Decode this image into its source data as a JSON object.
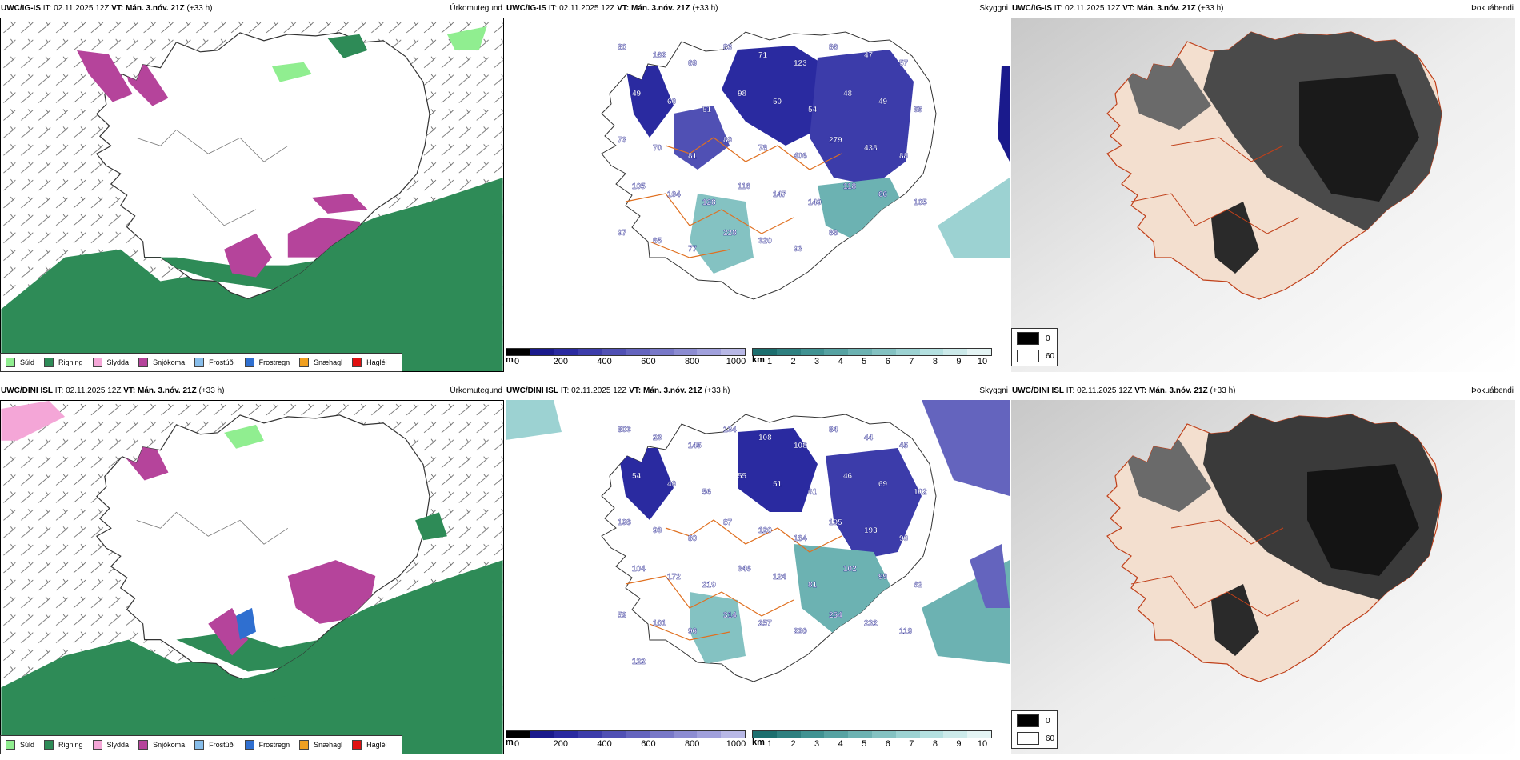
{
  "rows": [
    {
      "model": "UWC/IG-IS",
      "it": "IT: 02.11.2025 12Z",
      "vt_label": "VT:",
      "vt": "Mán. 3.nóv. 21Z",
      "lead": "(+33 h)",
      "titles": [
        "Úrkomutegund",
        "Skyggni",
        "Þokuábendi"
      ]
    },
    {
      "model": "UWC/DINI ISL",
      "it": "IT: 02.11.2025 12Z",
      "vt_label": "VT:",
      "vt": "Mán. 3.nóv. 21Z",
      "lead": "(+33 h)",
      "titles": [
        "Úrkomutegund",
        "Skyggni",
        "Þokuábendi"
      ]
    }
  ],
  "precip_legend": [
    {
      "label": "Súld",
      "color": "#90ee90"
    },
    {
      "label": "Rigning",
      "color": "#2e8b57"
    },
    {
      "label": "Slydda",
      "color": "#f4a6d7"
    },
    {
      "label": "Snjókoma",
      "color": "#b5449b"
    },
    {
      "label": "Frostúði",
      "color": "#87bdea"
    },
    {
      "label": "Frostregn",
      "color": "#2f6fd0"
    },
    {
      "label": "Snæhagl",
      "color": "#f0a020"
    },
    {
      "label": "Haglél",
      "color": "#e01010"
    }
  ],
  "visibility_m": {
    "unit": "m",
    "ticks": [
      "0",
      "200",
      "400",
      "600",
      "800",
      "1000"
    ],
    "colors": [
      "#000000",
      "#1a1a8c",
      "#2a2aa0",
      "#3c3caa",
      "#5050b4",
      "#6464be",
      "#7878c8",
      "#8c8cd2",
      "#a0a0dc",
      "#b8b8e6"
    ]
  },
  "visibility_km": {
    "unit": "km",
    "ticks": [
      "1",
      "2",
      "3",
      "4",
      "5",
      "6",
      "7",
      "8",
      "9",
      "10"
    ],
    "colors": [
      "#1c6e6e",
      "#2e8080",
      "#409292",
      "#56a2a2",
      "#6cb2b2",
      "#84c2c2",
      "#9cd2d2",
      "#b4e0e0",
      "#cceaea",
      "#e4f4f4"
    ]
  },
  "fog_legend": [
    {
      "value": "0",
      "color": "#000000"
    },
    {
      "value": "60",
      "color": "#ffffff"
    }
  ],
  "vis_labels_top": [
    "80",
    "162",
    "69",
    "83",
    "71",
    "123",
    "86",
    "47",
    "57",
    "49",
    "60",
    "51",
    "98",
    "50",
    "54",
    "48",
    "49",
    "65",
    "73",
    "70",
    "81",
    "89",
    "78",
    "406",
    "279",
    "438",
    "88",
    "105",
    "104",
    "128",
    "116",
    "147",
    "149",
    "118",
    "66",
    "105",
    "97",
    "65",
    "77",
    "228",
    "320",
    "93",
    "88"
  ],
  "vis_labels_bottom": [
    "803",
    "23",
    "145",
    "134",
    "108",
    "108",
    "84",
    "44",
    "45",
    "54",
    "49",
    "56",
    "55",
    "51",
    "61",
    "46",
    "69",
    "102",
    "198",
    "93",
    "80",
    "87",
    "120",
    "184",
    "195",
    "193",
    "93",
    "104",
    "172",
    "219",
    "346",
    "124",
    "81",
    "102",
    "99",
    "62",
    "59",
    "101",
    "96",
    "314",
    "257",
    "220",
    "254",
    "232",
    "119",
    "122"
  ]
}
